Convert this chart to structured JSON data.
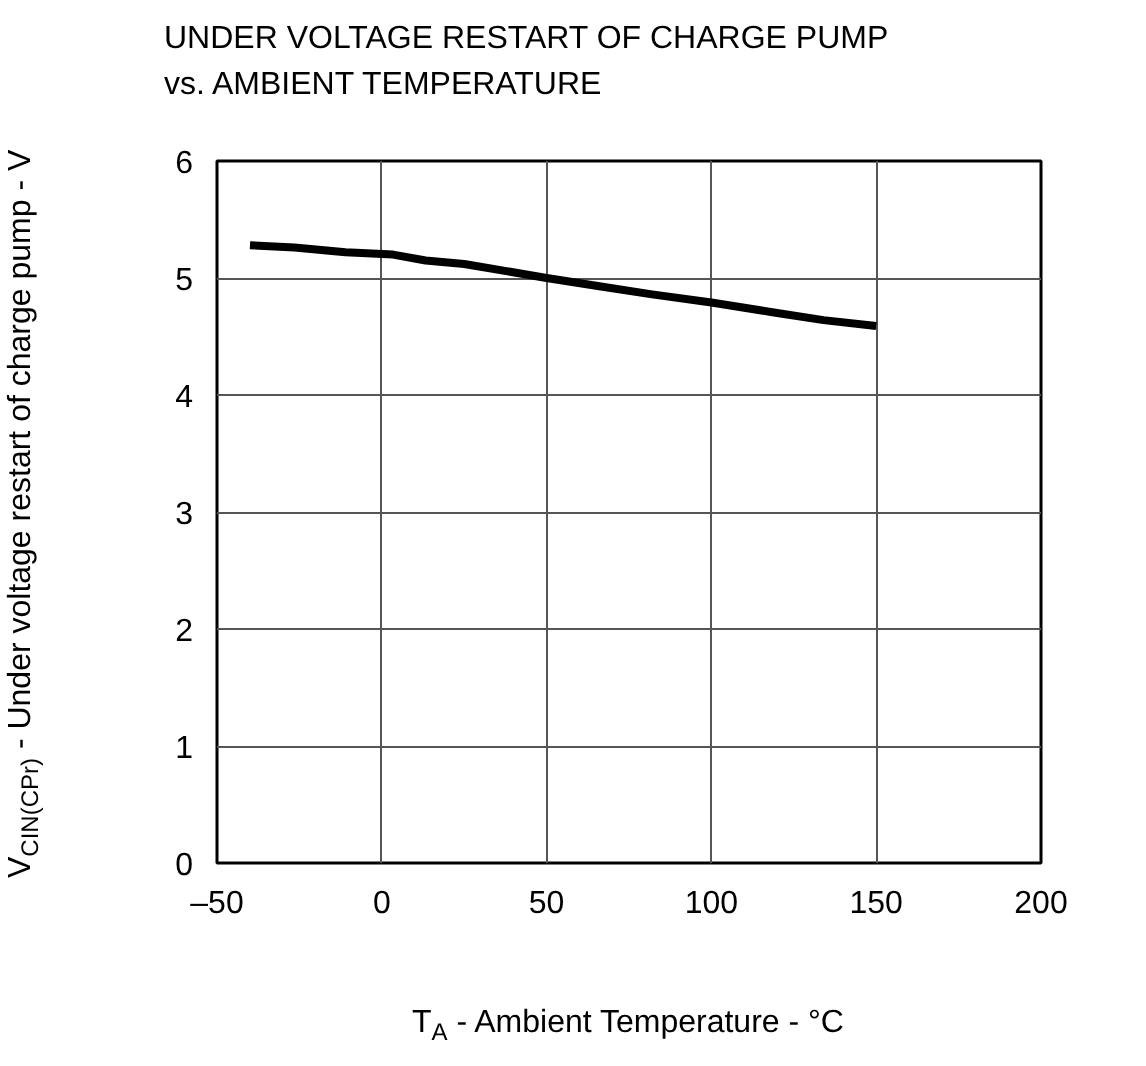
{
  "chart_data": {
    "type": "line",
    "title": "UNDER VOLTAGE RESTART OF CHARGE PUMP\nvs. AMBIENT TEMPERATURE",
    "xlabel": "T$_{A}$ - Ambient Temperature - °C",
    "ylabel": "V$_{CIN(CPr)}$ - Under voltage restart of charge pump - V",
    "x": [
      -40,
      -26.5,
      -11,
      3.4,
      13.3,
      25,
      50,
      66,
      82,
      100,
      118,
      134,
      150
    ],
    "series": [
      {
        "color": "#000000",
        "values": [
          5.28,
          5.26,
          5.22,
          5.2,
          5.15,
          5.12,
          5.0,
          4.93,
          4.86,
          4.79,
          4.71,
          4.64,
          4.59
        ]
      }
    ],
    "xlim": [
      -50,
      200
    ],
    "xticks": [
      {
        "value": -50,
        "label": "–50"
      },
      0,
      50,
      100,
      150,
      200
    ],
    "ylim": [
      0,
      6
    ],
    "yticks": [
      0,
      1,
      2,
      3,
      4,
      5,
      6
    ],
    "grid": true,
    "marker": "none",
    "line_style": "solid"
  }
}
